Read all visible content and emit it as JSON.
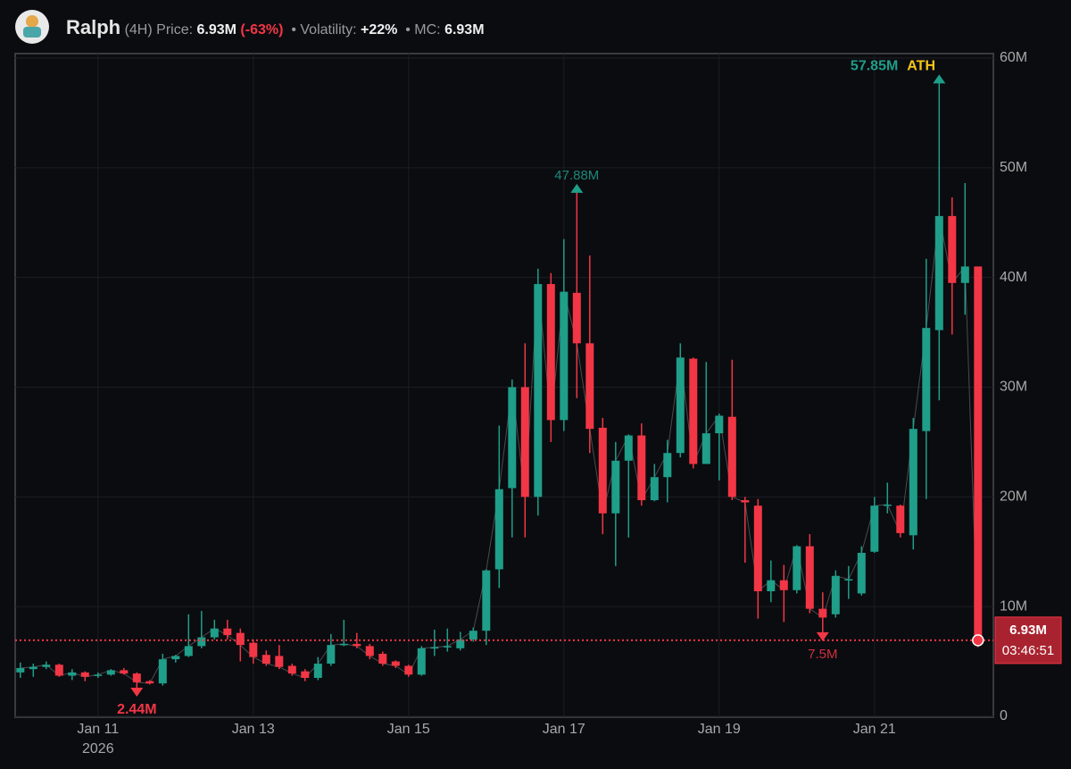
{
  "header": {
    "name": "Ralph",
    "interval": "(4H)",
    "price_label": "Price:",
    "price": "6.93M",
    "change": "(-63%)",
    "volatility_label": "• Volatility:",
    "volatility": "+22%",
    "mc_label": "• MC:",
    "mc": "6.93M"
  },
  "chart_data": {
    "type": "candlestick",
    "categories": [
      null,
      null,
      null,
      null,
      null,
      null,
      "Jan 11",
      null,
      null,
      null,
      null,
      null,
      null,
      null,
      null,
      null,
      null,
      null,
      "Jan 13",
      null,
      null,
      null,
      null,
      null,
      null,
      null,
      null,
      null,
      null,
      null,
      "Jan 15",
      null,
      null,
      null,
      null,
      null,
      null,
      null,
      null,
      null,
      null,
      null,
      "Jan 17",
      null,
      null,
      null,
      null,
      null,
      null,
      null,
      null,
      null,
      null,
      null,
      "Jan 19",
      null,
      null,
      null,
      null,
      null,
      null,
      null,
      null,
      null,
      null,
      null,
      "Jan 21",
      null,
      null,
      null,
      null,
      null,
      null,
      null,
      null
    ],
    "year": "2026",
    "open": [
      4.0,
      4.3,
      4.5,
      4.7,
      3.7,
      4.0,
      3.7,
      3.8,
      4.2,
      3.9,
      3.2,
      3.0,
      5.2,
      5.5,
      6.4,
      7.2,
      8.0,
      7.6,
      6.7,
      5.6,
      5.5,
      4.6,
      4.1,
      3.5,
      4.8,
      6.5,
      6.6,
      6.4,
      5.7,
      5.0,
      4.6,
      3.8,
      6.2,
      6.3,
      6.2,
      7.0,
      7.8,
      13.4,
      20.8,
      30.0,
      20.0,
      39.4,
      27.0,
      38.6,
      34.0,
      26.3,
      18.5,
      23.3,
      25.6,
      19.7,
      21.8,
      24.0,
      32.6,
      23.0,
      25.8,
      27.3,
      19.7,
      19.2,
      11.4,
      12.4,
      11.5,
      15.5,
      9.8,
      9.3,
      12.4,
      11.2,
      15.0,
      19.2,
      19.2,
      16.5,
      26.0,
      35.2,
      45.6,
      39.5,
      41.0
    ],
    "high": [
      4.9,
      4.8,
      5.0,
      4.8,
      4.3,
      4.1,
      4.0,
      4.3,
      4.4,
      4.0,
      3.3,
      5.7,
      5.6,
      9.3,
      9.6,
      8.8,
      8.8,
      8.0,
      7.0,
      6.0,
      6.5,
      4.8,
      4.3,
      5.4,
      7.5,
      8.8,
      7.6,
      6.6,
      5.9,
      5.1,
      4.7,
      6.4,
      7.9,
      8.0,
      7.7,
      8.1,
      13.4,
      26.5,
      30.7,
      34.0,
      40.8,
      40.4,
      43.5,
      47.88,
      42.0,
      27.2,
      25.0,
      25.7,
      26.7,
      23.0,
      25.2,
      34.0,
      32.7,
      32.3,
      27.6,
      32.5,
      20.0,
      19.8,
      14.2,
      13.8,
      15.6,
      16.6,
      11.3,
      13.3,
      13.7,
      15.5,
      20.0,
      21.3,
      19.3,
      27.2,
      41.7,
      57.85,
      47.3,
      48.6,
      41.0
    ],
    "low": [
      3.5,
      3.6,
      4.3,
      3.6,
      3.3,
      3.2,
      3.5,
      3.7,
      3.8,
      2.44,
      2.9,
      2.8,
      4.9,
      5.4,
      6.2,
      7.0,
      7.0,
      5.0,
      4.8,
      4.6,
      4.3,
      3.7,
      3.2,
      3.3,
      4.6,
      6.4,
      6.2,
      5.2,
      4.6,
      4.4,
      3.6,
      3.7,
      5.5,
      5.9,
      6.0,
      6.8,
      6.5,
      11.7,
      16.3,
      16.3,
      18.3,
      25.0,
      26.0,
      29.0,
      24.0,
      16.6,
      13.7,
      16.3,
      19.2,
      19.6,
      19.5,
      23.6,
      22.6,
      23.0,
      21.5,
      19.7,
      14.0,
      8.9,
      10.4,
      8.6,
      11.2,
      9.4,
      7.5,
      9.0,
      10.7,
      11.0,
      14.9,
      18.5,
      16.3,
      15.2,
      19.8,
      28.8,
      34.8,
      36.6,
      6.3
    ],
    "close": [
      4.4,
      4.5,
      4.7,
      3.7,
      4.0,
      3.6,
      3.8,
      4.2,
      3.9,
      3.1,
      3.0,
      5.2,
      5.5,
      6.4,
      7.2,
      8.0,
      7.4,
      6.5,
      5.4,
      4.8,
      4.5,
      3.9,
      3.5,
      4.8,
      6.5,
      6.6,
      6.4,
      5.5,
      4.8,
      4.6,
      3.8,
      6.2,
      6.3,
      6.4,
      7.0,
      7.8,
      13.3,
      20.7,
      30.0,
      20.0,
      39.4,
      27.0,
      38.7,
      34.0,
      26.2,
      18.5,
      23.3,
      25.6,
      19.7,
      21.8,
      24.0,
      32.7,
      23.0,
      25.8,
      27.4,
      20.0,
      19.5,
      11.4,
      12.4,
      11.5,
      15.5,
      9.8,
      9.0,
      12.8,
      12.5,
      14.9,
      19.2,
      19.3,
      16.7,
      26.2,
      35.4,
      45.6,
      39.5,
      41.0,
      6.93
    ],
    "up_color": "#1f9e89",
    "down_color": "#f23645",
    "ylim": [
      0,
      60
    ],
    "yticks": [
      0,
      {
        "value": 10,
        "label": "10M"
      },
      {
        "value": 20,
        "label": "20M"
      },
      {
        "value": 30,
        "label": "30M"
      },
      {
        "value": 40,
        "label": "40M"
      },
      {
        "value": 50,
        "label": "50M"
      },
      {
        "value": 60,
        "label": "60M"
      }
    ],
    "grid": true,
    "annotations": [
      {
        "x": 71,
        "value": 57.85,
        "label": "57.85M",
        "tag": "ATH"
      },
      {
        "x": 43,
        "value": 47.88,
        "label": "47.88M"
      },
      {
        "x": 9,
        "value": 2.44,
        "label": "2.44M"
      },
      {
        "x": 62,
        "value": 7.5,
        "label": "7.5M"
      }
    ],
    "current_price": {
      "value": 6.93,
      "label": "6.93M",
      "countdown": "03:46:51"
    }
  }
}
